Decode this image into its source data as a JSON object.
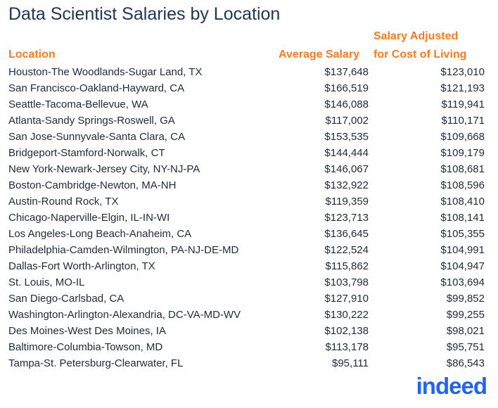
{
  "title": "Data Scientist Salaries by Location",
  "table": {
    "headers": {
      "location": "Location",
      "average": "Average Salary",
      "adjusted": [
        "Salary Adjusted",
        "for Cost of Living"
      ]
    },
    "rows": [
      [
        "Houston-The Woodlands-Sugar Land, TX",
        "$137,648",
        "$123,010"
      ],
      [
        "San Francisco-Oakland-Hayward, CA",
        "$166,519",
        "$121,193"
      ],
      [
        "Seattle-Tacoma-Bellevue, WA",
        "$146,088",
        "$119,941"
      ],
      [
        "Atlanta-Sandy Springs-Roswell, GA",
        "$117,002",
        "$110,171"
      ],
      [
        "San Jose-Sunnyvale-Santa Clara, CA",
        "$153,535",
        "$109,668"
      ],
      [
        "Bridgeport-Stamford-Norwalk, CT",
        "$144,444",
        "$109,179"
      ],
      [
        "New York-Newark-Jersey City, NY-NJ-PA",
        "$146,067",
        "$108,681"
      ],
      [
        "Boston-Cambridge-Newton, MA-NH",
        "$132,922",
        "$108,596"
      ],
      [
        "Austin-Round Rock, TX",
        "$119,359",
        "$108,410"
      ],
      [
        "Chicago-Naperville-Elgin, IL-IN-WI",
        "$123,713",
        "$108,141"
      ],
      [
        "Los Angeles-Long Beach-Anaheim, CA",
        "$136,645",
        "$105,355"
      ],
      [
        "Philadelphia-Camden-Wilmington, PA-NJ-DE-MD",
        "$122,524",
        "$104,991"
      ],
      [
        "Dallas-Fort Worth-Arlington, TX",
        "$115,862",
        "$104,947"
      ],
      [
        "St. Louis, MO-IL",
        "$103,798",
        "$103,694"
      ],
      [
        "San Diego-Carlsbad, CA",
        "$127,910",
        "$99,852"
      ],
      [
        "Washington-Arlington-Alexandria, DC-VA-MD-WV",
        "$130,222",
        "$99,255"
      ],
      [
        "Des Moines-West Des Moines, IA",
        "$102,138",
        "$98,021"
      ],
      [
        "Baltimore-Columbia-Towson, MD",
        "$113,178",
        "$95,751"
      ],
      [
        "Tampa-St. Petersburg-Clearwater, FL",
        "$95,111",
        "$86,543"
      ]
    ]
  },
  "logo": "indeed"
}
